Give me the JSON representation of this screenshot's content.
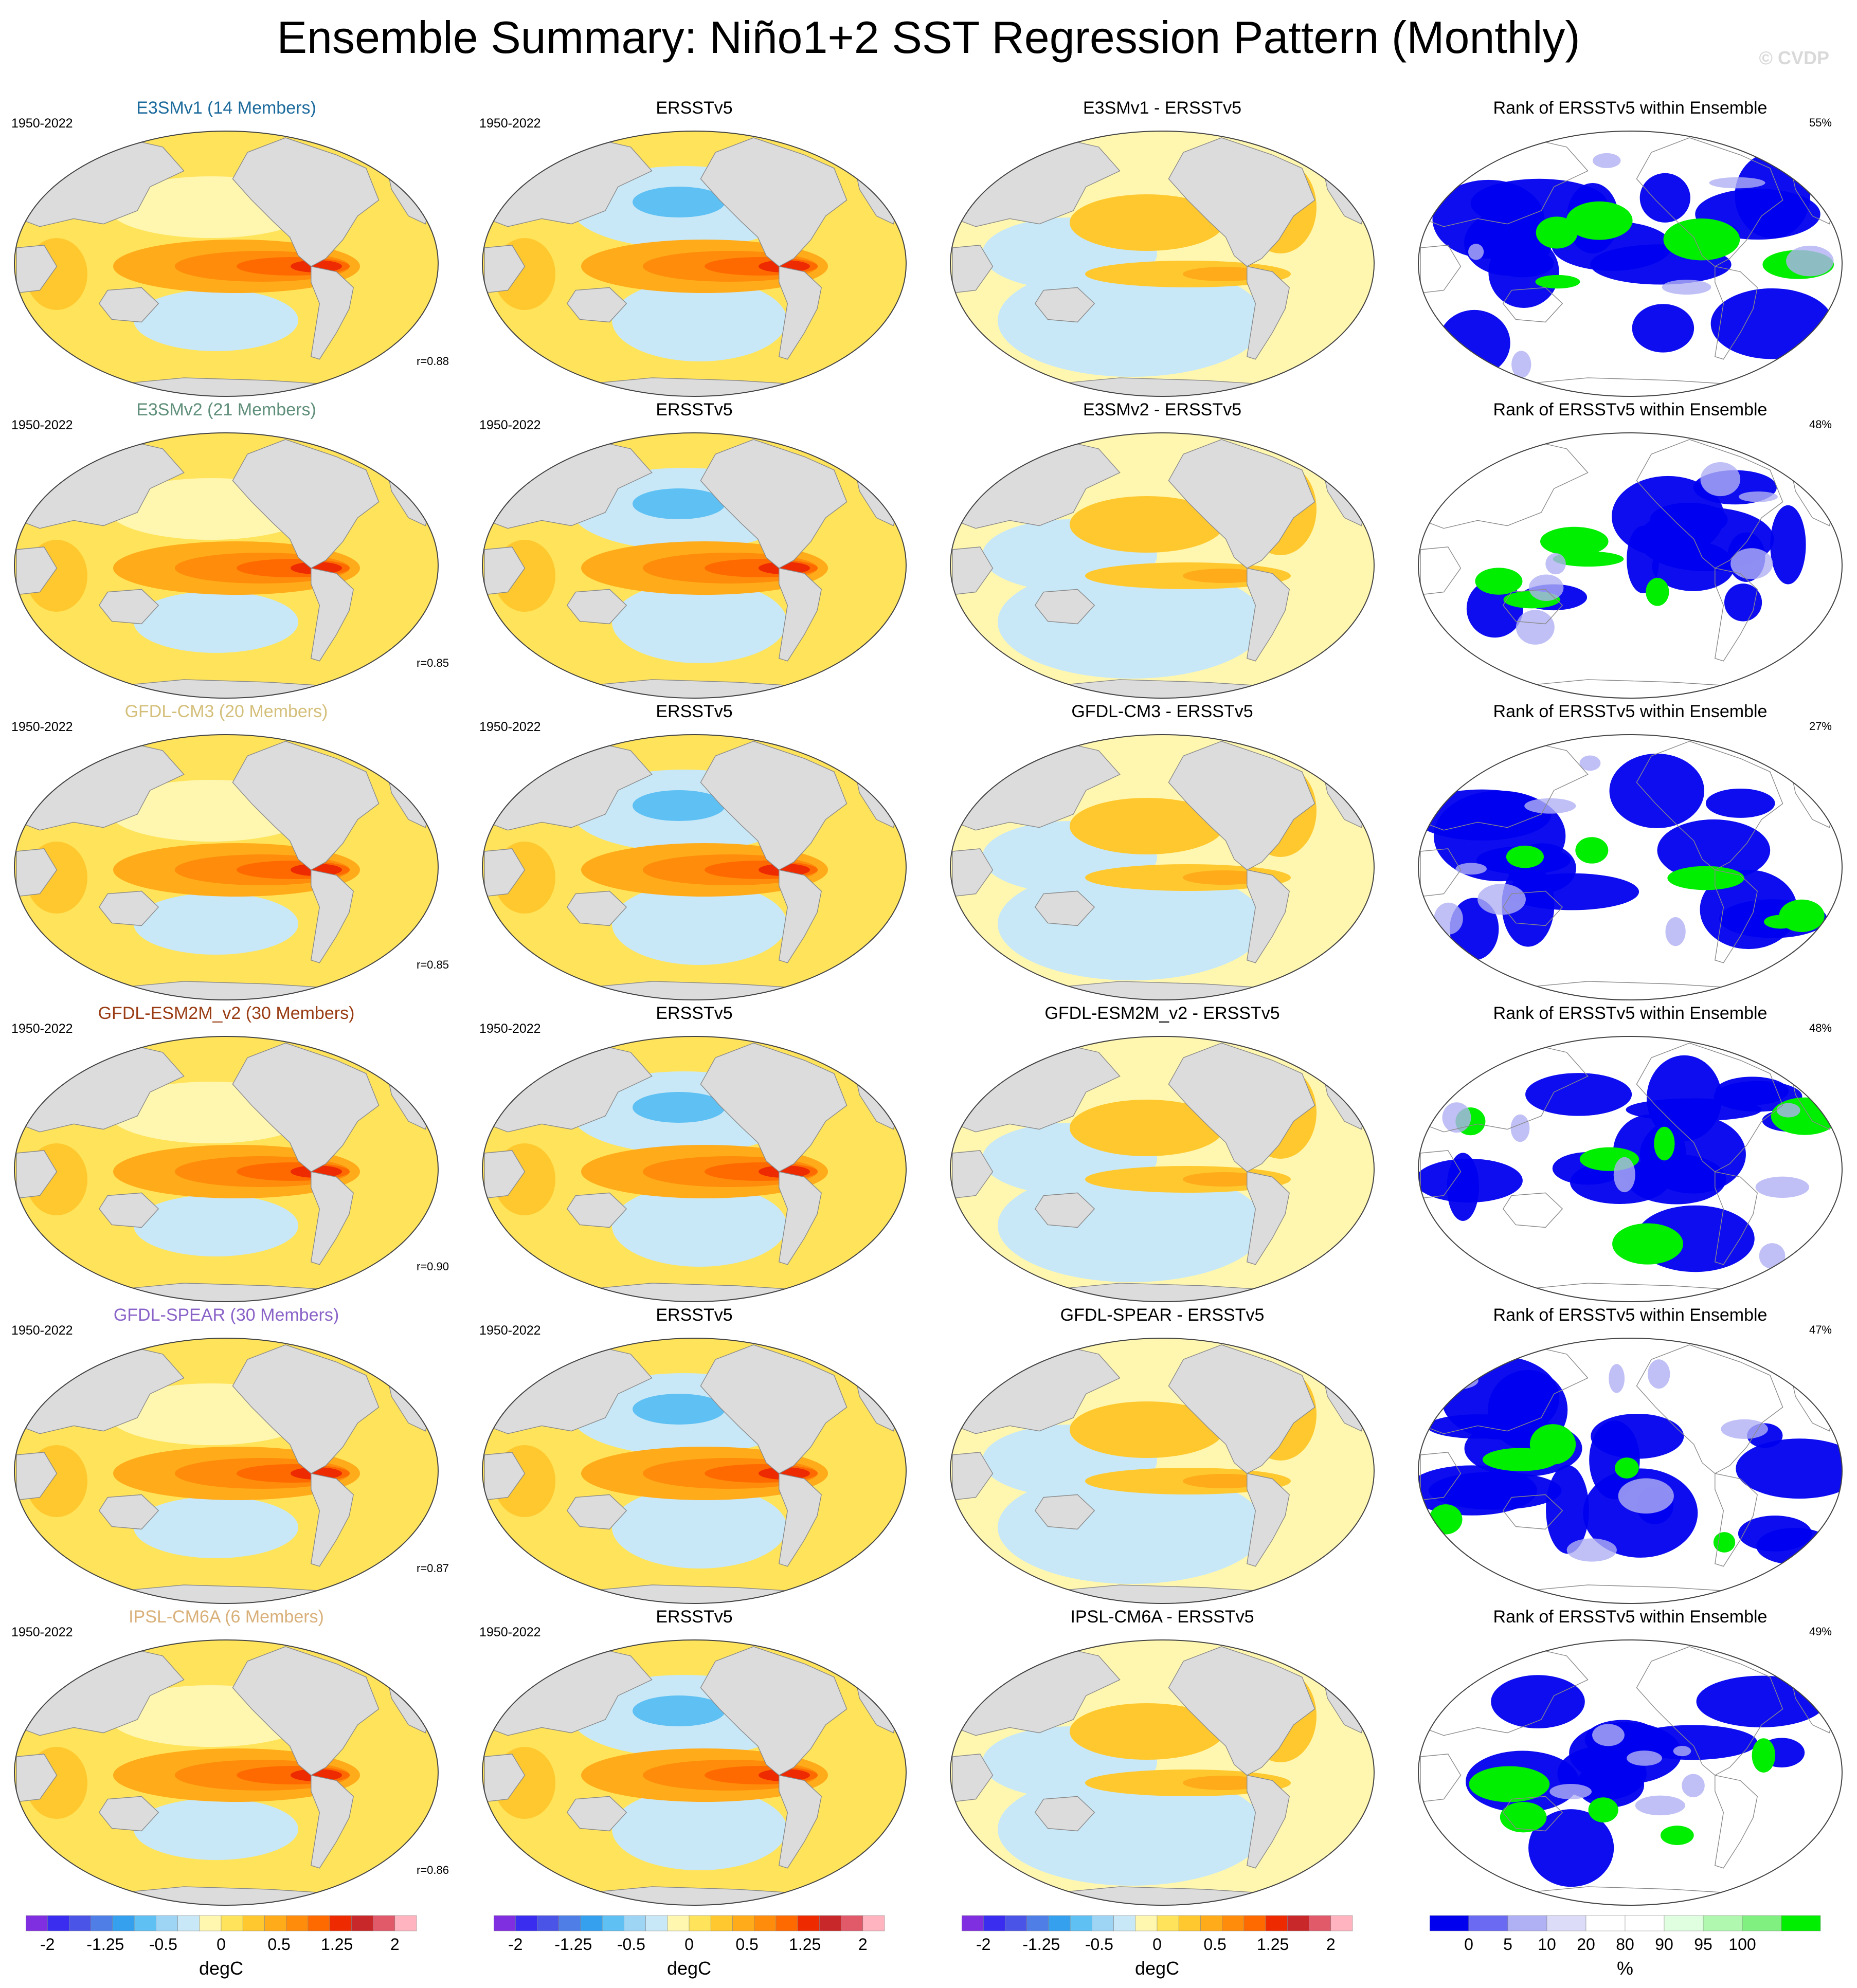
{
  "title": "Ensemble Summary: Niño1+2 SST Regression Pattern (Monthly)",
  "copyright": "© CVDP",
  "colors": {
    "land": "#dcdcdc",
    "coast": "#8a8a8a",
    "divergent_scale": [
      "#7f2fe0",
      "#3b2df0",
      "#4a55e8",
      "#4f7fe6",
      "#35a0ee",
      "#5fc0f3",
      "#9fd5f4",
      "#c8e8f7",
      "#fff7b0",
      "#ffe35a",
      "#ffc82e",
      "#ffab1a",
      "#ff8c0a",
      "#ff6a00",
      "#ee2a00",
      "#c8282a",
      "#e05a6a",
      "#ffb4bf"
    ],
    "rank_scale": [
      "#0000ef",
      "#6a6af2",
      "#b0b0f4",
      "#dcdcf8",
      "#ffffff",
      "#ffffff",
      "#e0ffe0",
      "#b0f8b0",
      "#80f080",
      "#00ee00"
    ]
  },
  "rows": [
    {
      "model": {
        "title": "E3SMv1 (14 Members)",
        "color": "#1b6a9c",
        "period": "1950-2022",
        "corr": "r=0.88"
      },
      "obs": {
        "title": "ERSSTv5",
        "period": "1950-2022"
      },
      "diff": {
        "title": "E3SMv1 - ERSSTv5"
      },
      "rank": {
        "title": "Rank of ERSSTv5 within Ensemble",
        "pct": "55%"
      }
    },
    {
      "model": {
        "title": "E3SMv2 (21 Members)",
        "color": "#5f8f7a",
        "period": "1950-2022",
        "corr": "r=0.85"
      },
      "obs": {
        "title": "ERSSTv5",
        "period": "1950-2022"
      },
      "diff": {
        "title": "E3SMv2 - ERSSTv5"
      },
      "rank": {
        "title": "Rank of ERSSTv5 within Ensemble",
        "pct": "48%"
      }
    },
    {
      "model": {
        "title": "GFDL-CM3 (20 Members)",
        "color": "#d4bf7a",
        "period": "1950-2022",
        "corr": "r=0.85"
      },
      "obs": {
        "title": "ERSSTv5",
        "period": "1950-2022"
      },
      "diff": {
        "title": "GFDL-CM3 - ERSSTv5"
      },
      "rank": {
        "title": "Rank of ERSSTv5 within Ensemble",
        "pct": "27%"
      }
    },
    {
      "model": {
        "title": "GFDL-ESM2M_v2 (30 Members)",
        "color": "#9a3d14",
        "period": "1950-2022",
        "corr": "r=0.90"
      },
      "obs": {
        "title": "ERSSTv5",
        "period": "1950-2022"
      },
      "diff": {
        "title": "GFDL-ESM2M_v2 - ERSSTv5"
      },
      "rank": {
        "title": "Rank of ERSSTv5 within Ensemble",
        "pct": "48%"
      }
    },
    {
      "model": {
        "title": "GFDL-SPEAR (30 Members)",
        "color": "#8a63c8",
        "period": "1950-2022",
        "corr": "r=0.87"
      },
      "obs": {
        "title": "ERSSTv5",
        "period": "1950-2022"
      },
      "diff": {
        "title": "GFDL-SPEAR - ERSSTv5"
      },
      "rank": {
        "title": "Rank of ERSSTv5 within Ensemble",
        "pct": "47%"
      }
    },
    {
      "model": {
        "title": "IPSL-CM6A (6 Members)",
        "color": "#d9b07a",
        "period": "1950-2022",
        "corr": "r=0.86"
      },
      "obs": {
        "title": "ERSSTv5",
        "period": "1950-2022"
      },
      "diff": {
        "title": "IPSL-CM6A - ERSSTv5"
      },
      "rank": {
        "title": "Rank of ERSSTv5 within Ensemble",
        "pct": "49%"
      }
    }
  ],
  "colorbars": [
    {
      "unit": "degC",
      "labels": [
        "-2",
        "-1.25",
        "-0.5",
        "0",
        "0.5",
        "1.25",
        "2"
      ]
    },
    {
      "unit": "degC",
      "labels": [
        "-2",
        "-1.25",
        "-0.5",
        "0",
        "0.5",
        "1.25",
        "2"
      ]
    },
    {
      "unit": "degC",
      "labels": [
        "-2",
        "-1.25",
        "-0.5",
        "0",
        "0.5",
        "1.25",
        "2"
      ]
    },
    {
      "unit": "%",
      "labels": [
        "0",
        "5",
        "10",
        "20",
        "80",
        "90",
        "95",
        "100"
      ]
    }
  ]
}
